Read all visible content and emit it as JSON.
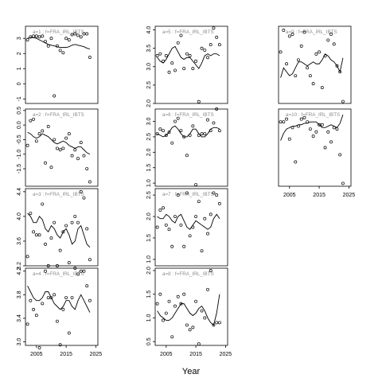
{
  "figure": {
    "xlabel": "Year",
    "title_template": "a={age} : f=FRA_IRL_IBTS"
  },
  "chart_data": [
    {
      "type": "scatter",
      "panel": "a=1",
      "age": 1,
      "title": "a=1 : f=FRA_IRL_IBTS",
      "xlim": [
        2001.3,
        2025.7
      ],
      "ylim": [
        -1.3,
        3.8
      ],
      "yticks": [
        -1,
        0,
        1,
        2,
        3
      ],
      "show_xticks": false,
      "x": [
        2002,
        2003,
        2004,
        2005,
        2006,
        2007,
        2008,
        2009,
        2010,
        2011,
        2012,
        2013,
        2014,
        2015,
        2016,
        2017,
        2018,
        2019,
        2020,
        2021,
        2022,
        2023
      ],
      "points": [
        2.9,
        3.1,
        3.15,
        3.15,
        3.1,
        3.15,
        2.8,
        2.5,
        3.0,
        -0.8,
        2.5,
        2.2,
        2.05,
        3.0,
        2.9,
        3.25,
        3.3,
        3.2,
        3.1,
        3.3,
        3.3,
        1.75
      ],
      "fitted": [
        3.0,
        3.05,
        3.05,
        3.0,
        2.9,
        2.8,
        2.7,
        2.6,
        2.55,
        2.5,
        2.45,
        2.4,
        2.4,
        2.4,
        2.45,
        2.55,
        2.6,
        2.55,
        2.5,
        2.45,
        2.35,
        2.3
      ]
    },
    {
      "type": "scatter",
      "panel": "a=2",
      "age": 2,
      "title": "a=2 : f=FRA_IRL_IBTS",
      "xlim": [
        2001.3,
        2025.7
      ],
      "ylim": [
        -2.1,
        0.55
      ],
      "yticks": [
        -1.5,
        -1.0,
        -0.5,
        0.0,
        0.5
      ],
      "show_xticks": false,
      "x": [
        2002,
        2003,
        2004,
        2005,
        2006,
        2007,
        2008,
        2009,
        2010,
        2011,
        2012,
        2013,
        2014,
        2015,
        2016,
        2017,
        2018,
        2019,
        2020,
        2021,
        2022,
        2023
      ],
      "points": [
        -0.7,
        0.15,
        0.2,
        -0.55,
        -0.3,
        -0.2,
        -1.3,
        -0.05,
        -1.45,
        -0.5,
        -0.8,
        -0.85,
        -0.8,
        -0.45,
        -0.3,
        -1.05,
        -0.85,
        -1.15,
        -0.6,
        -1.05,
        -1.5,
        -1.95
      ],
      "fitted": [
        -0.25,
        -0.3,
        -0.4,
        -0.45,
        -0.4,
        -0.3,
        -0.35,
        -0.4,
        -0.5,
        -0.6,
        -0.65,
        -0.6,
        -0.55,
        -0.6,
        -0.7,
        -0.75,
        -0.8,
        -0.75,
        -0.75,
        -0.85,
        -0.95,
        -1.0
      ]
    },
    {
      "type": "scatter",
      "panel": "a=3",
      "age": 3,
      "title": "a=3 : f=FRA_IRL_IBTS",
      "xlim": [
        2001.3,
        2025.7
      ],
      "ylim": [
        3.2,
        4.45
      ],
      "yticks": [
        3.2,
        3.6,
        4.0,
        4.4
      ],
      "show_xticks": false,
      "x": [
        2002,
        2003,
        2004,
        2005,
        2006,
        2007,
        2008,
        2009,
        2010,
        2011,
        2012,
        2013,
        2014,
        2015,
        2016,
        2017,
        2018,
        2019,
        2020,
        2021,
        2022,
        2023
      ],
      "points": [
        3.35,
        4.05,
        3.75,
        3.7,
        3.7,
        4.2,
        3.55,
        3.2,
        3.65,
        3.9,
        3.2,
        3.45,
        3.75,
        3.85,
        3.25,
        3.9,
        4.0,
        3.9,
        4.4,
        4.3,
        3.8,
        3.3
      ],
      "fitted": [
        4.05,
        4.0,
        3.9,
        3.9,
        4.0,
        3.95,
        3.8,
        3.75,
        3.85,
        3.8,
        3.7,
        3.65,
        3.75,
        3.8,
        3.7,
        3.55,
        3.6,
        3.8,
        3.85,
        3.7,
        3.55,
        3.5
      ]
    },
    {
      "type": "scatter",
      "panel": "a=4",
      "age": 4,
      "title": "a=4 : f=FRA_IRL_IBTS",
      "xlim": [
        2001.3,
        2025.7
      ],
      "ylim": [
        2.94,
        4.25
      ],
      "yticks": [
        3.0,
        3.4,
        3.8,
        4.2
      ],
      "show_xticks": true,
      "xticks": [
        2005,
        2015,
        2025
      ],
      "x": [
        2002,
        2003,
        2004,
        2005,
        2006,
        2007,
        2008,
        2009,
        2010,
        2011,
        2012,
        2013,
        2014,
        2015,
        2016,
        2017,
        2018,
        2019,
        2020,
        2021,
        2022,
        2023
      ],
      "points": [
        3.3,
        3.7,
        3.55,
        3.45,
        2.9,
        3.65,
        4.2,
        3.75,
        3.75,
        3.8,
        3.35,
        2.95,
        3.55,
        3.75,
        3.15,
        3.75,
        4.25,
        4.15,
        4.2,
        4.2,
        3.95,
        3.7
      ],
      "fitted": [
        3.95,
        3.85,
        3.75,
        3.7,
        3.7,
        3.75,
        3.85,
        3.85,
        3.75,
        3.65,
        3.6,
        3.55,
        3.6,
        3.7,
        3.7,
        3.6,
        3.55,
        3.7,
        3.8,
        3.7,
        3.6,
        3.5
      ]
    },
    {
      "type": "scatter",
      "panel": "a=5",
      "age": 5,
      "title": "a=5 : f=FRA_IRL_IBTS",
      "xlim": [
        2001.3,
        2025.7
      ],
      "ylim": [
        2.0,
        4.1
      ],
      "yticks": [
        2.0,
        2.5,
        3.0,
        3.5,
        4.0
      ],
      "show_xticks": false,
      "x": [
        2002,
        2003,
        2004,
        2005,
        2006,
        2007,
        2008,
        2009,
        2010,
        2011,
        2012,
        2013,
        2014,
        2015,
        2016,
        2017,
        2018,
        2019,
        2020,
        2021,
        2022,
        2023
      ],
      "points": [
        3.3,
        3.35,
        3.15,
        3.3,
        2.85,
        3.1,
        2.9,
        3.65,
        3.85,
        2.95,
        3.35,
        3.3,
        2.95,
        3.15,
        2.05,
        3.5,
        3.45,
        3.25,
        3.6,
        4.05,
        3.8,
        3.6
      ],
      "fitted": [
        3.25,
        3.15,
        3.1,
        3.2,
        3.35,
        3.5,
        3.55,
        3.4,
        3.25,
        3.2,
        3.25,
        3.25,
        3.15,
        3.05,
        2.95,
        3.1,
        3.3,
        3.35,
        3.3,
        3.35,
        3.35,
        3.3
      ]
    },
    {
      "type": "scatter",
      "panel": "a=6",
      "age": 6,
      "title": "a=6 : f=FRA_IRL_IBTS",
      "xlim": [
        2001.3,
        2025.7
      ],
      "ylim": [
        0.9,
        3.4
      ],
      "yticks": [
        1.0,
        1.5,
        2.0,
        2.5,
        3.0
      ],
      "show_xticks": false,
      "x": [
        2002,
        2003,
        2004,
        2005,
        2006,
        2007,
        2008,
        2009,
        2010,
        2011,
        2012,
        2013,
        2014,
        2015,
        2016,
        2017,
        2018,
        2019,
        2020,
        2021,
        2022,
        2023
      ],
      "points": [
        2.6,
        2.75,
        2.7,
        2.55,
        2.65,
        2.3,
        3.0,
        3.1,
        2.7,
        2.5,
        1.9,
        2.55,
        2.85,
        0.95,
        2.55,
        2.6,
        2.6,
        3.05,
        2.7,
        2.95,
        3.4,
        2.7
      ],
      "fitted": [
        2.6,
        2.55,
        2.5,
        2.55,
        2.65,
        2.8,
        2.85,
        2.75,
        2.6,
        2.5,
        2.5,
        2.6,
        2.75,
        2.75,
        2.6,
        2.5,
        2.5,
        2.6,
        2.75,
        2.8,
        2.8,
        2.75
      ]
    },
    {
      "type": "scatter",
      "panel": "a=7",
      "age": 7,
      "title": "a=7 : f=FRA_IRL_IBTS",
      "xlim": [
        2001.3,
        2025.7
      ],
      "ylim": [
        0.85,
        2.65
      ],
      "yticks": [
        1.0,
        1.5,
        2.0,
        2.5
      ],
      "show_xticks": false,
      "x": [
        2002,
        2003,
        2004,
        2005,
        2006,
        2007,
        2008,
        2009,
        2010,
        2011,
        2012,
        2013,
        2014,
        2015,
        2016,
        2017,
        2018,
        2019,
        2020,
        2021,
        2022,
        2023
      ],
      "points": [
        1.75,
        2.15,
        2.2,
        1.8,
        1.7,
        1.3,
        2.0,
        2.5,
        1.8,
        1.3,
        2.55,
        1.55,
        1.75,
        2.0,
        2.35,
        1.2,
        1.95,
        1.6,
        2.05,
        2.55,
        2.5,
        2.3
      ],
      "fitted": [
        2.0,
        1.95,
        1.95,
        2.05,
        2.0,
        1.9,
        1.85,
        2.0,
        2.05,
        1.9,
        1.75,
        1.7,
        1.8,
        1.9,
        1.85,
        1.8,
        1.75,
        1.7,
        1.75,
        1.95,
        2.05,
        1.95
      ]
    },
    {
      "type": "scatter",
      "panel": "a=8",
      "age": 8,
      "title": "a=8 : f=FRA_IRL_IBTS",
      "xlim": [
        2001.3,
        2025.7
      ],
      "ylim": [
        0.42,
        2.05
      ],
      "yticks": [
        0.5,
        1.0,
        1.5,
        2.0
      ],
      "show_xticks": true,
      "xticks": [
        2005,
        2015,
        2025
      ],
      "x": [
        2002,
        2003,
        2004,
        2005,
        2006,
        2007,
        2008,
        2009,
        2010,
        2011,
        2012,
        2013,
        2014,
        2015,
        2016,
        2017,
        2018,
        2019,
        2020,
        2021,
        2022,
        2023
      ],
      "points": [
        1.3,
        1.5,
        0.95,
        1.1,
        1.35,
        0.6,
        1.25,
        1.45,
        1.3,
        1.5,
        0.85,
        0.75,
        0.8,
        1.35,
        0.45,
        1.15,
        1.0,
        1.6,
        2.0,
        0.85,
        0.9,
        0.9
      ],
      "fitted": [
        1.15,
        1.05,
        1.0,
        0.95,
        0.95,
        1.0,
        1.1,
        1.2,
        1.3,
        1.3,
        1.2,
        1.1,
        1.05,
        1.1,
        1.2,
        1.25,
        1.15,
        1.0,
        0.9,
        0.85,
        1.1,
        1.5
      ]
    },
    {
      "type": "scatter",
      "panel": "a=9",
      "age": 9,
      "title": "a=9 : f=FRA_IRL_IBTS",
      "xlim": [
        2001.3,
        2025.7
      ],
      "ylim": [
        -0.7,
        1.25
      ],
      "yticks": [],
      "show_xticks": false,
      "x": [
        2002,
        2003,
        2004,
        2005,
        2006,
        2007,
        2008,
        2009,
        2010,
        2011,
        2012,
        2013,
        2014,
        2015,
        2016,
        2017,
        2018,
        2019,
        2020,
        2021,
        2022,
        2023
      ],
      "points": [
        0.6,
        1.15,
        0.3,
        1.0,
        1.05,
        0.0,
        0.4,
        0.75,
        1.1,
        0.2,
        0.0,
        -0.2,
        0.55,
        0.6,
        -0.3,
        0.5,
        0.9,
        1.05,
        0.8,
        0.25,
        0.1,
        -0.65
      ],
      "fitted": [
        -0.05,
        0.2,
        0.1,
        0.0,
        0.05,
        0.2,
        0.35,
        0.35,
        0.3,
        0.25,
        0.3,
        0.35,
        0.3,
        0.3,
        0.4,
        0.55,
        0.5,
        0.4,
        0.35,
        0.25,
        0.1,
        0.45
      ]
    },
    {
      "type": "scatter",
      "panel": "a=10",
      "age": 10,
      "title": "a=10 : f=FRA_IRL_IBTS",
      "xlim": [
        2001.3,
        2025.7
      ],
      "ylim": [
        -1.95,
        0.75
      ],
      "yticks": [],
      "show_xticks": true,
      "xticks": [
        2005,
        2015,
        2025
      ],
      "x": [
        2002,
        2003,
        2004,
        2005,
        2006,
        2007,
        2008,
        2009,
        2010,
        2011,
        2012,
        2013,
        2014,
        2015,
        2016,
        2017,
        2018,
        2019,
        2020,
        2021,
        2022,
        2023
      ],
      "points": [
        0.3,
        0.3,
        0.4,
        -0.3,
        0.1,
        -1.1,
        0.15,
        0.4,
        0.45,
        0.3,
        0.05,
        -0.2,
        -0.05,
        0.2,
        0.2,
        -0.6,
        -0.05,
        -0.4,
        0.1,
        0.05,
        -0.85,
        -1.85
      ],
      "fitted": [
        -0.35,
        -0.1,
        0.05,
        0.1,
        0.15,
        0.15,
        0.2,
        0.2,
        0.25,
        0.25,
        0.3,
        0.3,
        0.3,
        0.2,
        0.1,
        0.1,
        0.15,
        0.2,
        0.15,
        0.1,
        0.25,
        0.55
      ]
    }
  ]
}
